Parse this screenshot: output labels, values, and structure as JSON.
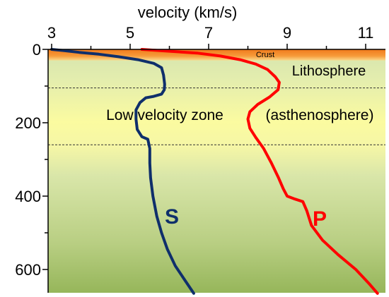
{
  "chart_data": {
    "type": "line",
    "title": "velocity (km/s)",
    "xlabel": "velocity (km/s)",
    "ylabel": "",
    "x_ticks": [
      "3",
      "5",
      "7",
      "9",
      "11"
    ],
    "y_ticks": [
      "0",
      "200",
      "400",
      "600"
    ],
    "xlim": [
      3,
      11.5
    ],
    "ylim": [
      0,
      665
    ],
    "series": [
      {
        "name": "S",
        "color": "#0f2f6b",
        "points": [
          [
            3.0,
            0
          ],
          [
            3.3,
            3
          ],
          [
            3.7,
            8
          ],
          [
            4.2,
            13
          ],
          [
            4.7,
            20
          ],
          [
            5.2,
            28
          ],
          [
            5.6,
            38
          ],
          [
            5.8,
            50
          ],
          [
            5.85,
            70
          ],
          [
            5.88,
            95
          ],
          [
            5.87,
            110
          ],
          [
            5.8,
            122
          ],
          [
            5.6,
            128
          ],
          [
            5.4,
            132
          ],
          [
            5.25,
            145
          ],
          [
            5.15,
            165
          ],
          [
            5.15,
            190
          ],
          [
            5.18,
            218
          ],
          [
            5.3,
            238
          ],
          [
            5.45,
            245
          ],
          [
            5.5,
            270
          ],
          [
            5.5,
            310
          ],
          [
            5.52,
            350
          ],
          [
            5.58,
            400
          ],
          [
            5.68,
            455
          ],
          [
            5.8,
            500
          ],
          [
            5.95,
            545
          ],
          [
            6.15,
            590
          ],
          [
            6.4,
            630
          ],
          [
            6.62,
            665
          ]
        ]
      },
      {
        "name": "P",
        "color": "#ff0000",
        "points": [
          [
            5.3,
            0
          ],
          [
            6.0,
            5
          ],
          [
            6.7,
            10
          ],
          [
            7.3,
            18
          ],
          [
            7.8,
            28
          ],
          [
            8.2,
            40
          ],
          [
            8.5,
            55
          ],
          [
            8.7,
            75
          ],
          [
            8.8,
            90
          ],
          [
            8.77,
            110
          ],
          [
            8.55,
            130
          ],
          [
            8.25,
            150
          ],
          [
            8.05,
            170
          ],
          [
            8.0,
            190
          ],
          [
            8.05,
            215
          ],
          [
            8.2,
            240
          ],
          [
            8.4,
            270
          ],
          [
            8.6,
            310
          ],
          [
            8.78,
            350
          ],
          [
            8.9,
            380
          ],
          [
            9.0,
            400
          ],
          [
            9.2,
            408
          ],
          [
            9.4,
            415
          ],
          [
            9.5,
            440
          ],
          [
            9.62,
            480
          ],
          [
            9.9,
            520
          ],
          [
            10.3,
            560
          ],
          [
            10.75,
            600
          ],
          [
            11.1,
            640
          ],
          [
            11.3,
            665
          ]
        ]
      }
    ],
    "layers": [
      {
        "label": "Crust",
        "depth_range": [
          0,
          30
        ]
      },
      {
        "label": "Lithosphere",
        "depth_range": [
          30,
          105
        ]
      },
      {
        "label": "Low velocity zone",
        "depth_range": [
          105,
          260
        ]
      },
      {
        "label": "(asthenosphere)",
        "depth_range": [
          105,
          260
        ]
      }
    ],
    "boundaries": [
      105,
      260
    ],
    "grid": false,
    "colors": {
      "crust_dark": "#f07a1c",
      "crust_light": "#fbb34f",
      "band_yellow": "#fbfba0",
      "upper_green": "#cfe0a4",
      "deep_green": "#96b65a"
    }
  }
}
